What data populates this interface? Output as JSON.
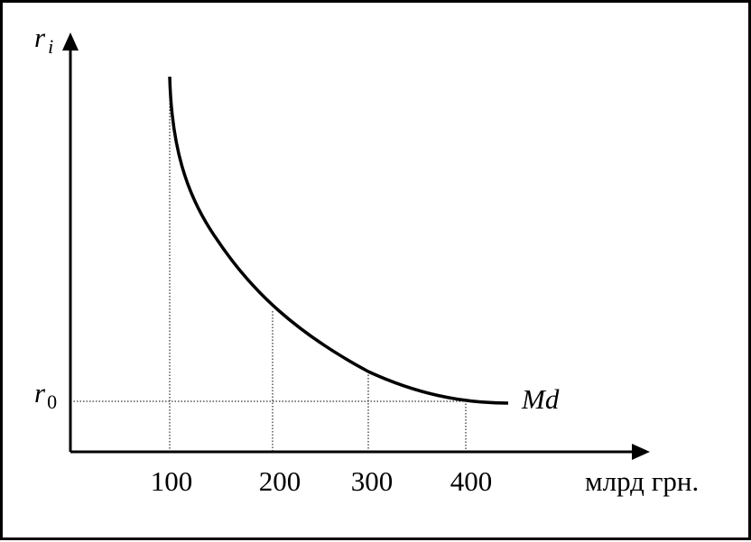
{
  "axes": {
    "y_label": "r",
    "y_label_sub": "i",
    "x_unit": "млрд грн."
  },
  "level": {
    "label": "r",
    "sub": "0"
  },
  "curve": {
    "label": "Md"
  },
  "x_ticks": [
    "100",
    "200",
    "300",
    "400"
  ]
}
